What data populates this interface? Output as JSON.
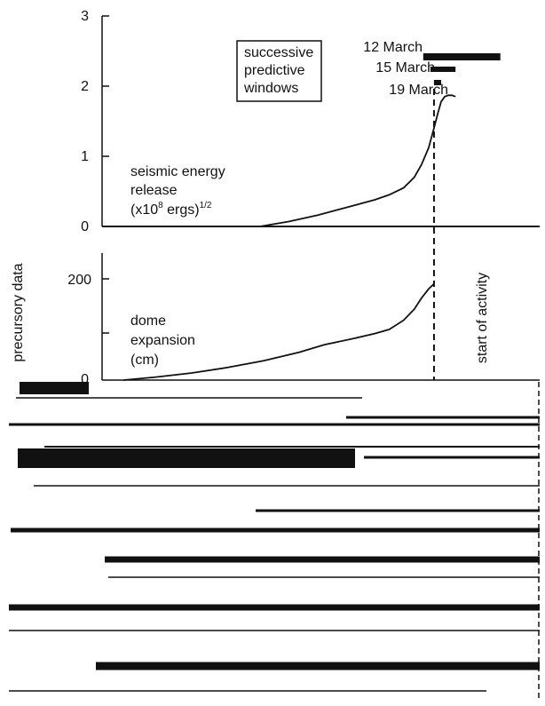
{
  "chart_data": [
    {
      "type": "line",
      "panel": "upper",
      "y_axis_label": "",
      "ylim": [
        0,
        3
      ],
      "yticks": [
        "0",
        "1",
        "2",
        "3"
      ],
      "annotation": {
        "line1": "seismic energy",
        "line2": "release",
        "line3_prefix": "(x10",
        "line3_sup1": "8",
        "line3_mid": " ergs)",
        "line3_sup2": "1/2"
      },
      "series": [
        {
          "x": [
            0.44,
            0.52,
            0.6,
            0.68,
            0.76,
            0.8,
            0.84,
            0.87,
            0.89,
            0.91,
            0.925,
            0.935,
            0.945,
            0.955,
            0.965,
            0.975,
            0.985
          ],
          "y": [
            0.0,
            0.07,
            0.16,
            0.27,
            0.38,
            0.45,
            0.55,
            0.7,
            0.88,
            1.12,
            1.4,
            1.6,
            1.78,
            1.85,
            1.87,
            1.87,
            1.85
          ]
        }
      ],
      "legend_box": {
        "line1": "successive",
        "line2": "predictive",
        "line3": "windows"
      },
      "windows": [
        {
          "label": "12 March",
          "start": 0.895,
          "end": 1.11
        },
        {
          "label": "15 March",
          "start": 0.915,
          "end": 0.985
        },
        {
          "label": "19 March",
          "start": 0.925,
          "end": 0.945
        }
      ]
    },
    {
      "type": "line",
      "panel": "lower",
      "y_axis_label": "precursory data",
      "ylim": [
        0,
        320
      ],
      "yticks": [
        "0",
        "200"
      ],
      "annotation": {
        "line1": "dome",
        "line2": "expansion",
        "line3": "(cm)"
      },
      "series": [
        {
          "x": [
            0.06,
            0.15,
            0.25,
            0.35,
            0.45,
            0.55,
            0.62,
            0.7,
            0.76,
            0.8,
            0.84,
            0.87,
            0.89,
            0.91,
            0.925
          ],
          "y": [
            0,
            6,
            14,
            25,
            38,
            55,
            70,
            82,
            92,
            100,
            118,
            140,
            162,
            180,
            190
          ]
        }
      ],
      "vertical_marker": {
        "x": 0.925,
        "label": "start of activity"
      }
    }
  ]
}
